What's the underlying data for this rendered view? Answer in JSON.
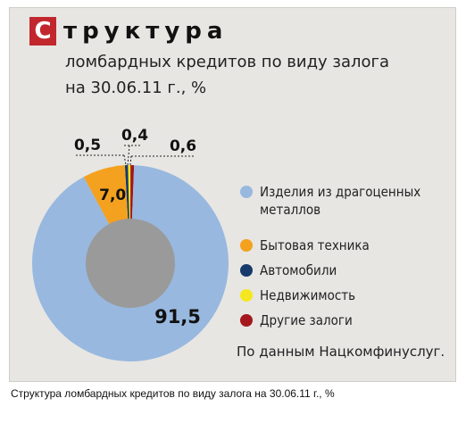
{
  "title": {
    "initial": "С",
    "rest": "труктура",
    "subtitle_line1": "ломбардных кредитов по виду залога",
    "subtitle_line2": "на 30.06.11 г., %"
  },
  "chart_data": {
    "type": "pie",
    "variant": "donut",
    "title": "Структура ломбардных кредитов по виду залога на 30.06.11 г., %",
    "legend_placement": "right",
    "slices": [
      {
        "name": "Изделия из драгоценных металлов",
        "value": 91.5,
        "label": "91,5",
        "color": "#98b8df"
      },
      {
        "name": "Бытовая техника",
        "value": 7.0,
        "label": "7,0",
        "color": "#f4a11f"
      },
      {
        "name": "Автомобили",
        "value": 0.5,
        "label": "0,5",
        "color": "#163a6b"
      },
      {
        "name": "Недвижимость",
        "value": 0.4,
        "label": "0,4",
        "color": "#f5e71f"
      },
      {
        "name": "Другие залоги",
        "value": 0.6,
        "label": "0,6",
        "color": "#a3171d"
      }
    ],
    "hole_color": "#9a9a9a"
  },
  "legend": {
    "items": [
      {
        "text": "Изделия из драгоценных металлов",
        "color": "#98b8df"
      },
      {
        "text": "Бытовая техника",
        "color": "#f4a11f"
      },
      {
        "text": "Автомобили",
        "color": "#163a6b"
      },
      {
        "text": "Недвижимость",
        "color": "#f5e71f"
      },
      {
        "text": "Другие залоги",
        "color": "#a3171d"
      }
    ]
  },
  "source_note": "По данным Нацкомфинуслуг.",
  "caption": "Структура ломбардных кредитов по виду залога на 30.06.11 г., %"
}
